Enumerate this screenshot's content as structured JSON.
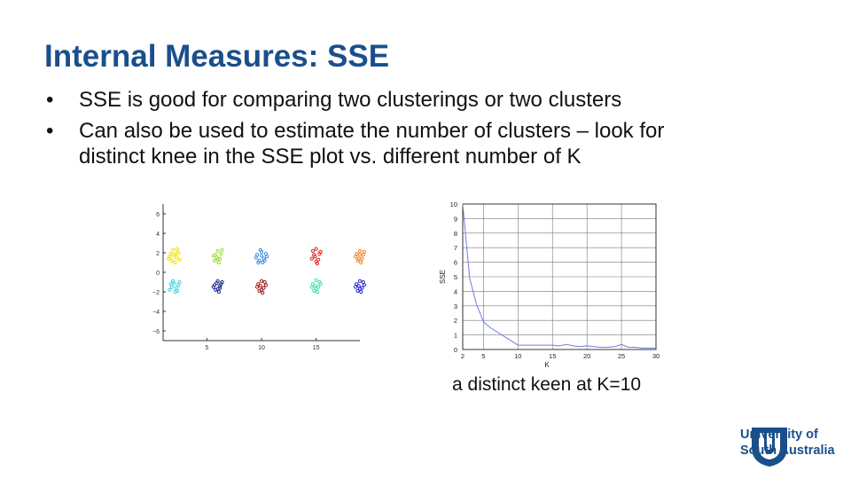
{
  "slide": {
    "title": "Internal Measures: SSE",
    "bullets": [
      {
        "symbol": "•",
        "lines": [
          "SSE is good for comparing two clusterings or two clusters"
        ]
      },
      {
        "symbol": "•",
        "lines": [
          "Can also be used to estimate the number of clusters – look for",
          "distinct knee in the SSE plot vs. different number of K"
        ]
      }
    ],
    "caption": "a distinct keen at K=10",
    "logo": {
      "icon": "unisa-emblem-icon",
      "line1": "University of",
      "line2": "South Australia",
      "color": "#1a4f8b"
    }
  },
  "chart_data": [
    {
      "type": "scatter",
      "title": "",
      "xlabel": "",
      "ylabel": "",
      "xlim": [
        1,
        19
      ],
      "ylim": [
        -7,
        7
      ],
      "xticks": [
        5,
        10,
        15
      ],
      "xtick_labels": [
        "5",
        "10",
        "15"
      ],
      "yticks": [
        6,
        4,
        2,
        0,
        -2,
        -4,
        -6
      ],
      "ytick_labels": [
        "6",
        "4",
        "2",
        "0",
        "−2",
        "−4",
        "−6"
      ],
      "grid": false,
      "series": [
        {
          "center": [
            2,
            1.6
          ],
          "color": "#e8e800",
          "values": [
            [
              1.7,
              1.9
            ],
            [
              2.2,
              1.5
            ],
            [
              1.8,
              1.2
            ],
            [
              2.4,
              2.0
            ],
            [
              1.9,
              2.3
            ],
            [
              2.1,
              1.0
            ],
            [
              1.6,
              1.6
            ],
            [
              2.5,
              1.3
            ],
            [
              2.0,
              1.8
            ],
            [
              2.3,
              2.4
            ],
            [
              1.5,
              1.4
            ],
            [
              2.2,
              1.9
            ]
          ]
        },
        {
          "center": [
            6,
            1.6
          ],
          "color": "#99e033",
          "values": [
            [
              5.8,
              1.8
            ],
            [
              6.2,
              1.4
            ],
            [
              6.0,
              2.2
            ],
            [
              5.7,
              1.2
            ],
            [
              6.3,
              1.9
            ],
            [
              6.1,
              1.0
            ],
            [
              5.9,
              1.5
            ],
            [
              6.4,
              2.3
            ],
            [
              5.6,
              1.7
            ],
            [
              6.0,
              1.3
            ]
          ]
        },
        {
          "center": [
            10,
            1.6
          ],
          "color": "#3a8fe0",
          "values": [
            [
              9.6,
              1.8
            ],
            [
              10.2,
              1.4
            ],
            [
              10.0,
              2.1
            ],
            [
              9.8,
              1.2
            ],
            [
              10.4,
              1.9
            ],
            [
              10.1,
              1.0
            ],
            [
              9.5,
              1.5
            ],
            [
              10.5,
              1.6
            ],
            [
              9.9,
              2.3
            ],
            [
              10.3,
              1.2
            ],
            [
              9.7,
              1.0
            ],
            [
              10.0,
              1.7
            ]
          ]
        },
        {
          "center": [
            15,
            1.6
          ],
          "color": "#e02020",
          "values": [
            [
              14.8,
              1.8
            ],
            [
              15.2,
              1.3
            ],
            [
              15.0,
              2.4
            ],
            [
              14.6,
              1.4
            ],
            [
              15.3,
              1.9
            ],
            [
              15.1,
              0.9
            ],
            [
              14.9,
              1.6
            ],
            [
              15.4,
              2.1
            ],
            [
              14.7,
              2.2
            ],
            [
              15.0,
              1.1
            ]
          ]
        },
        {
          "center": [
            19,
            1.6
          ],
          "color": "#f08020",
          "values": [
            [
              18.7,
              1.9
            ],
            [
              19.2,
              1.4
            ],
            [
              19.0,
              2.2
            ],
            [
              18.8,
              1.2
            ],
            [
              19.3,
              1.8
            ],
            [
              19.1,
              1.0
            ],
            [
              18.6,
              1.6
            ],
            [
              19.4,
              2.1
            ],
            [
              18.9,
              1.4
            ],
            [
              19.0,
              1.8
            ]
          ]
        },
        {
          "center": [
            2,
            -1.4
          ],
          "color": "#40d0e0",
          "values": [
            [
              1.7,
              -1.2
            ],
            [
              2.2,
              -1.6
            ],
            [
              1.9,
              -0.9
            ],
            [
              2.4,
              -1.3
            ],
            [
              1.6,
              -1.8
            ],
            [
              2.1,
              -2.0
            ],
            [
              2.5,
              -1.0
            ],
            [
              1.8,
              -1.5
            ],
            [
              2.3,
              -1.9
            ],
            [
              2.0,
              -1.1
            ]
          ]
        },
        {
          "center": [
            6,
            -1.4
          ],
          "color": "#1a2a90",
          "values": [
            [
              5.7,
              -1.3
            ],
            [
              6.2,
              -1.6
            ],
            [
              6.0,
              -0.9
            ],
            [
              6.3,
              -1.2
            ],
            [
              5.8,
              -1.8
            ],
            [
              6.1,
              -2.0
            ],
            [
              5.6,
              -1.5
            ],
            [
              6.4,
              -1.0
            ],
            [
              5.9,
              -1.1
            ],
            [
              6.2,
              -1.4
            ],
            [
              6.0,
              -1.7
            ]
          ]
        },
        {
          "center": [
            10,
            -1.4
          ],
          "color": "#9a1818",
          "values": [
            [
              9.7,
              -1.2
            ],
            [
              10.2,
              -1.6
            ],
            [
              10.0,
              -0.9
            ],
            [
              9.8,
              -1.9
            ],
            [
              10.4,
              -1.3
            ],
            [
              10.1,
              -2.1
            ],
            [
              9.6,
              -1.5
            ],
            [
              10.3,
              -1.0
            ],
            [
              9.9,
              -1.4
            ],
            [
              10.0,
              -1.8
            ]
          ]
        },
        {
          "center": [
            15,
            -1.4
          ],
          "color": "#40e0b0",
          "values": [
            [
              14.7,
              -1.2
            ],
            [
              15.2,
              -1.5
            ],
            [
              15.0,
              -0.8
            ],
            [
              14.8,
              -1.9
            ],
            [
              15.4,
              -1.2
            ],
            [
              15.1,
              -2.0
            ],
            [
              14.6,
              -1.5
            ],
            [
              15.3,
              -1.0
            ],
            [
              14.9,
              -1.4
            ],
            [
              15.0,
              -1.7
            ]
          ]
        },
        {
          "center": [
            19,
            -1.4
          ],
          "color": "#2a2ad0",
          "values": [
            [
              18.7,
              -1.2
            ],
            [
              19.2,
              -1.6
            ],
            [
              19.0,
              -0.9
            ],
            [
              18.8,
              -1.9
            ],
            [
              19.4,
              -1.3
            ],
            [
              19.1,
              -2.0
            ],
            [
              18.6,
              -1.5
            ],
            [
              19.3,
              -1.0
            ],
            [
              18.9,
              -1.4
            ],
            [
              19.0,
              -1.7
            ]
          ]
        }
      ]
    },
    {
      "type": "line",
      "title": "",
      "xlabel": "K",
      "ylabel": "SSE",
      "xlim": [
        2,
        30
      ],
      "ylim": [
        0,
        10
      ],
      "xticks": [
        2,
        5,
        10,
        15,
        20,
        25,
        30
      ],
      "yticks": [
        0,
        1,
        2,
        3,
        4,
        5,
        6,
        7,
        8,
        9,
        10
      ],
      "grid": true,
      "series": [
        {
          "color": "#6f7fdc",
          "x": [
            2,
            3,
            4,
            5,
            6,
            7,
            8,
            9,
            10,
            11,
            12,
            13,
            14,
            15,
            16,
            17,
            18,
            19,
            20,
            21,
            22,
            23,
            24,
            25,
            26,
            27,
            28,
            29,
            30
          ],
          "values": [
            10.0,
            4.9,
            3.1,
            1.9,
            1.5,
            1.2,
            0.9,
            0.6,
            0.3,
            0.3,
            0.3,
            0.3,
            0.3,
            0.3,
            0.25,
            0.35,
            0.25,
            0.2,
            0.25,
            0.2,
            0.15,
            0.15,
            0.2,
            0.35,
            0.15,
            0.15,
            0.1,
            0.1,
            0.1
          ]
        }
      ]
    }
  ]
}
